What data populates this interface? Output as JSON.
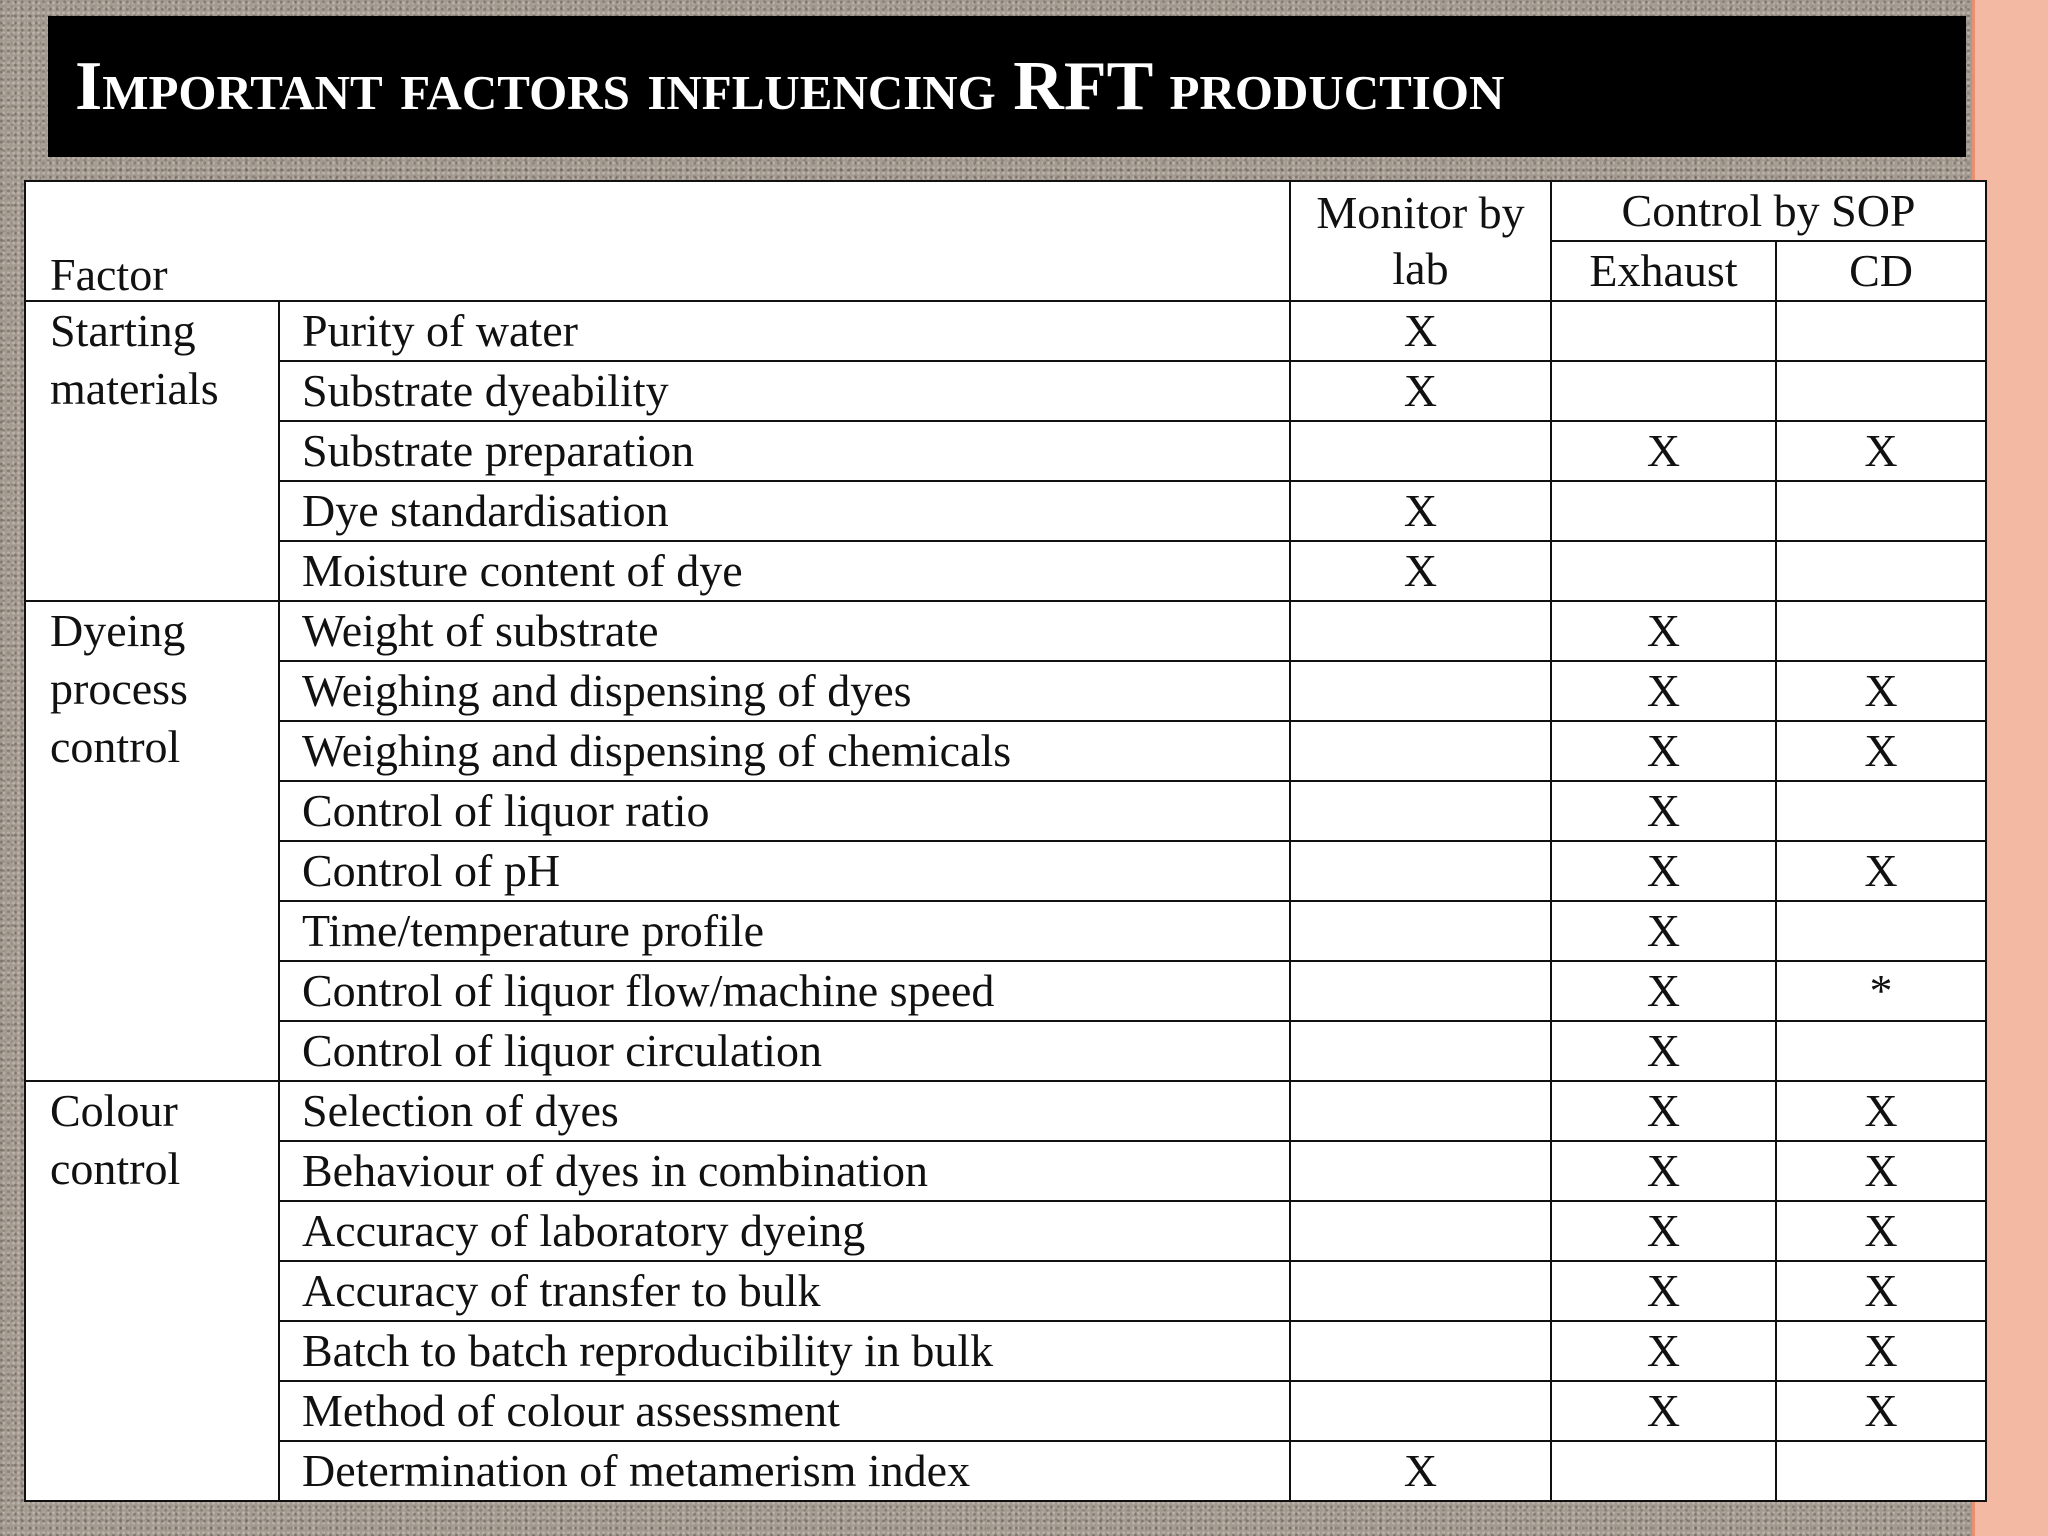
{
  "title": "Important factors influencing RFT production",
  "table": {
    "header": {
      "factor": "Factor",
      "monitor": "Monitor by lab",
      "control": "Control by SOP",
      "exhaust": "Exhaust",
      "cd": "CD"
    },
    "groups": [
      {
        "label": "Starting materials",
        "rows": [
          {
            "factor": "Purity of water",
            "monitor": "X"
          },
          {
            "factor": "Substrate dyeability",
            "monitor": "X"
          },
          {
            "factor": "Substrate preparation",
            "exhaust": "X",
            "cd": "X"
          },
          {
            "factor": "Dye standardisation",
            "monitor": "X"
          },
          {
            "factor": "Moisture content of dye",
            "monitor": "X"
          }
        ]
      },
      {
        "label": "Dyeing process control",
        "rows": [
          {
            "factor": "Weight of substrate",
            "exhaust": "X"
          },
          {
            "factor": "Weighing and dispensing of dyes",
            "exhaust": "X",
            "cd": "X"
          },
          {
            "factor": "Weighing and dispensing of chemicals",
            "exhaust": "X",
            "cd": "X"
          },
          {
            "factor": "Control of liquor ratio",
            "exhaust": "X"
          },
          {
            "factor": "Control of pH",
            "exhaust": "X",
            "cd": "X"
          },
          {
            "factor": "Time/temperature profile",
            "exhaust": "X"
          },
          {
            "factor": "Control of liquor flow/machine speed",
            "exhaust": "X",
            "cd": "*"
          },
          {
            "factor": "Control of liquor circulation",
            "exhaust": "X"
          }
        ]
      },
      {
        "label": "Colour control",
        "rows": [
          {
            "factor": "Selection of dyes",
            "exhaust": "X",
            "cd": "X"
          },
          {
            "factor": "Behaviour of dyes in combination",
            "exhaust": "X",
            "cd": "X"
          },
          {
            "factor": "Accuracy of laboratory dyeing",
            "exhaust": "X",
            "cd": "X"
          },
          {
            "factor": "Accuracy of transfer to bulk",
            "exhaust": "X",
            "cd": "X"
          },
          {
            "factor": "Batch to batch reproducibility in bulk",
            "exhaust": "X",
            "cd": "X"
          },
          {
            "factor": "Method of colour assessment",
            "exhaust": "X",
            "cd": "X"
          },
          {
            "factor": "Determination of metamerism index",
            "monitor": "X"
          }
        ]
      }
    ]
  }
}
